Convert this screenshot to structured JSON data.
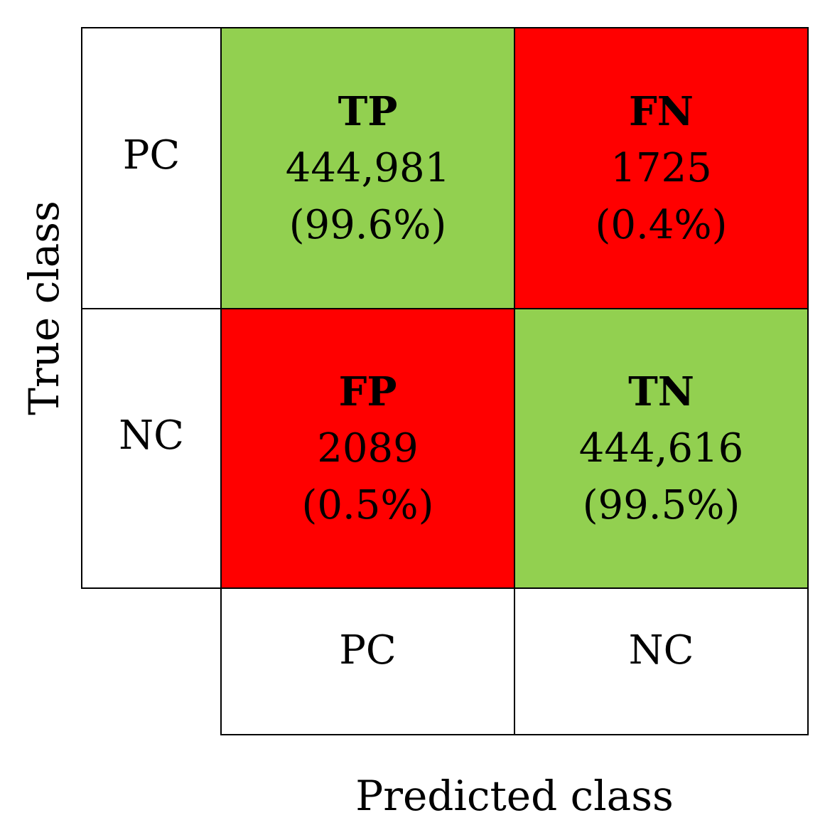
{
  "chart_data": {
    "type": "table",
    "subtype": "confusion-matrix",
    "xlabel": "Predicted class",
    "ylabel": "True class",
    "row_labels": [
      "PC",
      "NC"
    ],
    "col_labels": [
      "PC",
      "NC"
    ],
    "cells": [
      [
        {
          "label": "TP",
          "count": "444,981",
          "percent": "(99.6%)",
          "value": 444981,
          "fraction": 0.996,
          "color": "#92d050"
        },
        {
          "label": "FN",
          "count": "1725",
          "percent": "(0.4%)",
          "value": 1725,
          "fraction": 0.004,
          "color": "#ff0000"
        }
      ],
      [
        {
          "label": "FP",
          "count": "2089",
          "percent": "(0.5%)",
          "value": 2089,
          "fraction": 0.005,
          "color": "#ff0000"
        },
        {
          "label": "TN",
          "count": "444,616",
          "percent": "(99.5%)",
          "value": 444616,
          "fraction": 0.995,
          "color": "#92d050"
        }
      ]
    ]
  }
}
